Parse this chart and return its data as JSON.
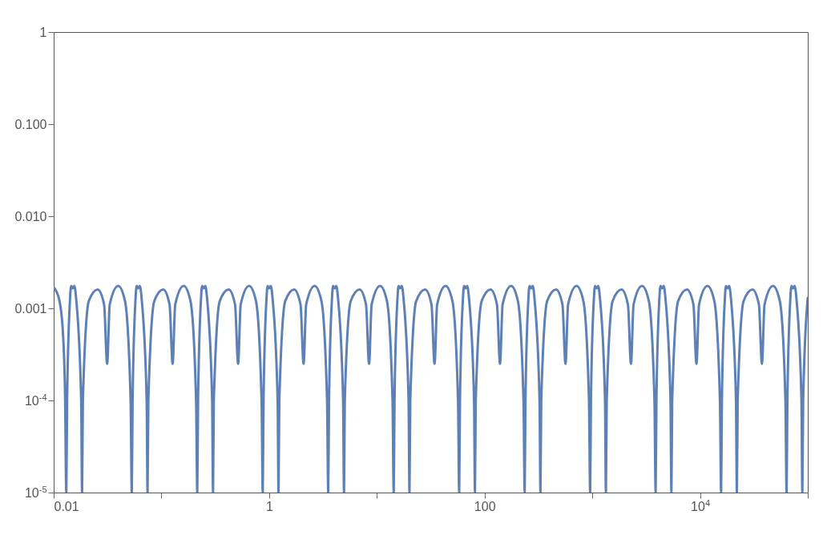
{
  "chart_data": {
    "type": "line",
    "log": "xy",
    "grid": false,
    "line_style": "solid",
    "marker": "none",
    "xlim": [
      0.01,
      100000
    ],
    "ylim": [
      1e-05,
      1
    ],
    "xticks": [
      0.01,
      {
        "value": 0.1,
        "label": null
      },
      1,
      {
        "value": 10,
        "label": null
      },
      100,
      {
        "value": 1000,
        "label": null
      },
      {
        "value": 10000,
        "label": "10$^{4}$"
      },
      {
        "value": 100000,
        "label": null
      }
    ],
    "yticks": [
      {
        "value": 1e-05,
        "label": "10$^{-5}$"
      },
      {
        "value": 0.0001,
        "label": "10$^{-4}$"
      },
      0.001,
      {
        "value": 0.01,
        "label": "0.010"
      },
      {
        "value": 0.1,
        "label": "0.100"
      },
      1
    ],
    "series": [
      {
        "color": "#5e81b5",
        "x": [
          0.01,
          0.011326,
          0.012237,
          0.012774,
          0.013096,
          0.013323,
          0.014148,
          0.014518,
          0.015025,
          0.015552,
          0.016235,
          0.017997,
          0.018341,
          0.018659,
          0.021189,
          0.025596,
          0.029369,
          0.031345,
          0.033124,
          0.039672,
          0.045917,
          0.051778,
          0.053088,
          0.054006,
          0.057351,
          0.058853,
          0.060908,
          0.063042,
          0.065813,
          0.072954,
          0.07435,
          0.07564,
          0.085896,
          0.10376,
          0.11906,
          0.12707,
          0.13428,
          0.16082,
          0.18614,
          0.20989,
          0.21518,
          0.2189,
          0.23246,
          0.23855,
          0.24688,
          0.25553,
          0.26676,
          0.2957,
          0.30136,
          0.30659,
          0.34816,
          0.42057,
          0.48256,
          0.51503,
          0.54425,
          0.65184,
          0.75449,
          0.85076,
          0.8723,
          0.88739,
          0.94235,
          0.96703,
          1.0008,
          1.0359,
          1.0814,
          1.1987,
          1.2217,
          1.2429,
          1.4114,
          1.7049,
          1.9562,
          2.0879,
          2.2063,
          2.6425,
          3.0584,
          3.4486,
          3.5363,
          3.5975,
          3.8203,
          3.9203,
          4.0572,
          4.1994,
          4.384,
          4.8596,
          4.9526,
          5.0385,
          5.7217,
          6.9117,
          7.9299,
          8.4635,
          8.9437,
          10.7125,
          12.399,
          13.982,
          14.335,
          14.583,
          15.486,
          15.892,
          16.447,
          17.023,
          17.771,
          19.699,
          20.076,
          20.425,
          23.194,
          28.018,
          32.148,
          34.311,
          36.257,
          43.425,
          50.262,
          56.676,
          58.102,
          59.107,
          62.768,
          64.412,
          66.66,
          68.996,
          72.029,
          79.844,
          81.372,
          82.784,
          94.009,
          113.56,
          130.3,
          139.07,
          146.96,
          176.01,
          203.72,
          229.72,
          235.53,
          239.6,
          254.44,
          261.11,
          270.22,
          279.69,
          291.99,
          323.67,
          329.86,
          335.58,
          381.09,
          460.34,
          528.2,
          563.74,
          595.72,
          713.49,
          825.81,
          931.22,
          954.77,
          971.29,
          1031.4,
          1058.5,
          1095.4,
          1133.8,
          1183.6,
          1312.1,
          1337.2,
          1360.4,
          1544.8,
          1866.1,
          2141.2,
          2285.2,
          2414.9,
          2892.3,
          3347.6,
          3774.9,
          3870.2,
          3937.2,
          4181,
          4290.5,
          4440.3,
          4595.9,
          4797.9,
          5318.4,
          5420.2,
          5514.3,
          6262,
          7564.3,
          8679.3,
          9263.5,
          9789,
          11724,
          13570,
          15302,
          15690,
          15961,
          16950,
          17394,
          18001,
          18632,
          19451,
          21561,
          21974,
          22355,
          25386,
          30666,
          35186,
          37554,
          39685,
          47530,
          55012,
          62034,
          63599,
          64699,
          68706,
          70506,
          72967,
          75524,
          78844,
          87398,
          89070,
          90616,
          100000
        ],
        "values": [
          0.0017,
          0.0012,
          0.0005,
          0.0001,
          1e-05,
          0.0001,
          0.0012,
          0.00175,
          0.00165,
          0.00175,
          0.0012,
          0.0001,
          1e-05,
          0.0001,
          0.0012,
          0.0016,
          0.0011,
          0.00025,
          0.0011,
          0.00175,
          0.0012,
          0.0001,
          1e-05,
          0.0001,
          0.0012,
          0.00175,
          0.00165,
          0.00175,
          0.0012,
          0.0001,
          1e-05,
          0.0001,
          0.0012,
          0.0016,
          0.0011,
          0.00025,
          0.0011,
          0.00175,
          0.0012,
          0.0001,
          1e-05,
          0.0001,
          0.0012,
          0.00175,
          0.00165,
          0.00175,
          0.0012,
          0.0001,
          1e-05,
          0.0001,
          0.0012,
          0.0016,
          0.0011,
          0.00025,
          0.0011,
          0.00175,
          0.0012,
          0.0001,
          1e-05,
          0.0001,
          0.0012,
          0.00175,
          0.00165,
          0.00175,
          0.0012,
          0.0001,
          1e-05,
          0.0001,
          0.0012,
          0.0016,
          0.0011,
          0.00025,
          0.0011,
          0.00175,
          0.0012,
          0.0001,
          1e-05,
          0.0001,
          0.0012,
          0.00175,
          0.00165,
          0.00175,
          0.0012,
          0.0001,
          1e-05,
          0.0001,
          0.0012,
          0.0016,
          0.0011,
          0.00025,
          0.0011,
          0.00175,
          0.0012,
          0.0001,
          1e-05,
          0.0001,
          0.0012,
          0.00175,
          0.00165,
          0.00175,
          0.0012,
          0.0001,
          1e-05,
          0.0001,
          0.0012,
          0.0016,
          0.0011,
          0.00025,
          0.0011,
          0.00175,
          0.0012,
          0.0001,
          1e-05,
          0.0001,
          0.0012,
          0.00175,
          0.00165,
          0.00175,
          0.0012,
          0.0001,
          1e-05,
          0.0001,
          0.0012,
          0.0016,
          0.0011,
          0.00025,
          0.0011,
          0.00175,
          0.0012,
          0.0001,
          1e-05,
          0.0001,
          0.0012,
          0.00175,
          0.00165,
          0.00175,
          0.0012,
          0.0001,
          1e-05,
          0.0001,
          0.0012,
          0.0016,
          0.0011,
          0.00025,
          0.0011,
          0.00175,
          0.0012,
          0.0001,
          1e-05,
          0.0001,
          0.0012,
          0.00175,
          0.00165,
          0.00175,
          0.0012,
          0.0001,
          1e-05,
          0.0001,
          0.0012,
          0.0016,
          0.0011,
          0.00025,
          0.0011,
          0.00175,
          0.0012,
          0.0001,
          1e-05,
          0.0001,
          0.0012,
          0.00175,
          0.00165,
          0.00175,
          0.0012,
          0.0001,
          1e-05,
          0.0001,
          0.0012,
          0.0016,
          0.0011,
          0.00025,
          0.0011,
          0.00175,
          0.0012,
          0.0001,
          1e-05,
          0.0001,
          0.0012,
          0.00175,
          0.00165,
          0.00175,
          0.0012,
          0.0001,
          1e-05,
          0.0001,
          0.0012,
          0.0016,
          0.0011,
          0.00025,
          0.0011,
          0.00175,
          0.0012,
          0.0001,
          1e-05,
          0.0001,
          0.0012,
          0.00175,
          0.00165,
          0.00175,
          0.0012,
          0.0001,
          1e-05,
          0.0001,
          0.0013
        ]
      }
    ]
  }
}
